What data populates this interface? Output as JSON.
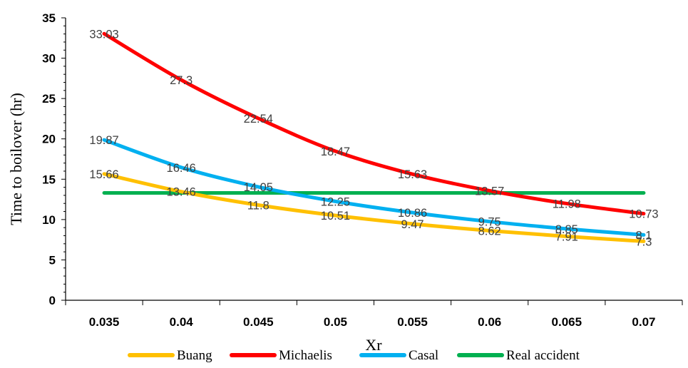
{
  "chart_data": {
    "type": "line",
    "xlabel": "Xr",
    "ylabel": "Time to boilover (hr)",
    "x": [
      "0.035",
      "0.04",
      "0.045",
      "0.05",
      "0.055",
      "0.06",
      "0.065",
      "0.07"
    ],
    "ylim": [
      0,
      35
    ],
    "yticks": [
      "0",
      "5",
      "10",
      "15",
      "20",
      "25",
      "30",
      "35"
    ],
    "grid": false,
    "legend_position": "bottom",
    "series": [
      {
        "name": "Buang",
        "color": "#FFC000",
        "values": [
          15.66,
          13.46,
          11.8,
          10.51,
          9.47,
          8.62,
          7.91,
          7.3
        ],
        "labels": [
          "15.66",
          "13.46",
          "11.8",
          "10.51",
          "9.47",
          "8.62",
          "7.91",
          "7.3"
        ]
      },
      {
        "name": "Michaelis",
        "color": "#FF0000",
        "values": [
          33.03,
          27.3,
          22.54,
          18.47,
          15.63,
          13.57,
          11.98,
          10.73
        ],
        "labels": [
          "33.03",
          "27.3",
          "22.54",
          "18.47",
          "15.63",
          "13.57",
          "11.98",
          "10.73"
        ]
      },
      {
        "name": "Casal",
        "color": "#00B0F0",
        "values": [
          19.87,
          16.46,
          14.05,
          12.25,
          10.86,
          9.75,
          8.85,
          8.1
        ],
        "labels": [
          "19.87",
          "16.46",
          "14.05",
          "12.25",
          "10.86",
          "9.75",
          "8.85",
          "8.1"
        ]
      },
      {
        "name": "Real accident",
        "color": "#00B050",
        "values": [
          13.3,
          13.3,
          13.3,
          13.3,
          13.3,
          13.3,
          13.3,
          13.3
        ],
        "labels": []
      }
    ]
  }
}
